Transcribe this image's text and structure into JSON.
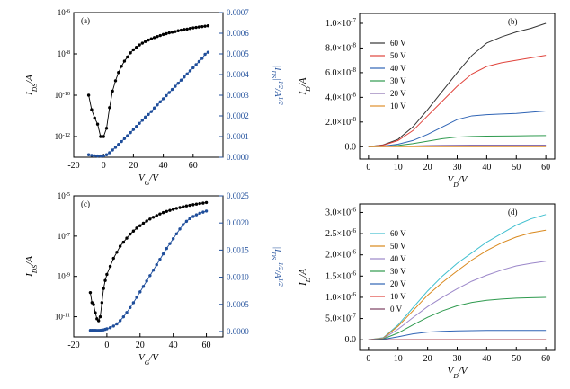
{
  "chart_data": [
    {
      "type": "line",
      "panel_label": "(a)",
      "xlabel": "V_G/V",
      "ylabel": "I_DS/A",
      "y2label": "|I_DS|^1/2/A^1/2",
      "xlim": [
        -20,
        80
      ],
      "xticks": [
        "-20",
        "0",
        "20",
        "40",
        "60"
      ],
      "ylim_log10": [
        -13,
        -6
      ],
      "yticks": [
        "10^-12",
        "10^-10",
        "10^-8",
        "10^-6"
      ],
      "y2lim": [
        0,
        0.0007
      ],
      "y2ticks": [
        "0.0000",
        "0.0001",
        "0.0002",
        "0.0003",
        "0.0004",
        "0.0005",
        "0.0006",
        "0.0007"
      ],
      "y2_color": "#1f4e9b",
      "x": [
        -10,
        -8,
        -6,
        -4,
        -2,
        0,
        2,
        4,
        6,
        8,
        10,
        12,
        14,
        16,
        18,
        20,
        22,
        24,
        26,
        28,
        30,
        32,
        34,
        36,
        38,
        40,
        42,
        44,
        46,
        48,
        50,
        52,
        54,
        56,
        58,
        60,
        62,
        64,
        66,
        68,
        70
      ],
      "series": [
        {
          "axis": "left",
          "color": "#000000",
          "values_log10": [
            -10.0,
            -10.7,
            -11.1,
            -11.4,
            -12.0,
            -12.0,
            -11.6,
            -10.6,
            -9.8,
            -9.3,
            -8.9,
            -8.6,
            -8.35,
            -8.15,
            -7.95,
            -7.8,
            -7.68,
            -7.57,
            -7.48,
            -7.4,
            -7.33,
            -7.27,
            -7.21,
            -7.16,
            -7.11,
            -7.06,
            -7.02,
            -6.98,
            -6.95,
            -6.92,
            -6.88,
            -6.85,
            -6.82,
            -6.8,
            -6.77,
            -6.74,
            -6.72,
            -6.7,
            -6.68,
            -6.66,
            -6.64
          ]
        },
        {
          "axis": "right",
          "color": "#1f4e9b",
          "values": [
            1.2e-05,
            9e-06,
            7e-06,
            6e-06,
            6e-06,
            7e-06,
            1.2e-05,
            2.2e-05,
            3.5e-05,
            4.8e-05,
            6.2e-05,
            7.6e-05,
            9e-05,
            0.000104,
            0.000119,
            0.000134,
            0.000149,
            0.000164,
            0.000179,
            0.000194,
            0.000207,
            0.000221,
            0.000238,
            0.000253,
            0.000268,
            0.000283,
            0.000298,
            0.000313,
            0.000328,
            0.000343,
            0.000358,
            0.000373,
            0.000388,
            0.000403,
            0.000418,
            0.000433,
            0.000448,
            0.000463,
            0.000478,
            0.000498,
            0.000508
          ]
        }
      ]
    },
    {
      "type": "line",
      "panel_label": "(b)",
      "xlabel": "V_D/V",
      "ylabel": "I_D/A",
      "xlim": [
        -3,
        63
      ],
      "xticks": [
        "0",
        "10",
        "20",
        "30",
        "40",
        "50",
        "60"
      ],
      "ylim": [
        -1e-08,
        1.08e-07
      ],
      "yticks": [
        "0.0",
        "2.0x10^-8",
        "4.0x10^-8",
        "6.0x10^-8",
        "8.0x10^-8",
        "1.0x10^-7"
      ],
      "x": [
        0,
        5,
        10,
        15,
        20,
        25,
        30,
        35,
        40,
        45,
        50,
        55,
        60
      ],
      "series": [
        {
          "name": "60 V",
          "color": "#333333",
          "values": [
            0,
            1.5e-09,
            6e-09,
            1.6e-08,
            3e-08,
            4.5e-08,
            6e-08,
            7.4e-08,
            8.4e-08,
            8.9e-08,
            9.3e-08,
            9.6e-08,
            1e-07
          ]
        },
        {
          "name": "50 V",
          "color": "#e0443c",
          "values": [
            0,
            1.2e-09,
            5e-09,
            1.3e-08,
            2.5e-08,
            3.7e-08,
            4.9e-08,
            5.9e-08,
            6.5e-08,
            6.8e-08,
            7e-08,
            7.2e-08,
            7.4e-08
          ]
        },
        {
          "name": "40 V",
          "color": "#2f64b5",
          "values": [
            0,
            5e-10,
            2e-09,
            5e-09,
            1e-08,
            1.6e-08,
            2.2e-08,
            2.5e-08,
            2.6e-08,
            2.65e-08,
            2.7e-08,
            2.8e-08,
            2.9e-08
          ]
        },
        {
          "name": "30 V",
          "color": "#2e9a4e",
          "values": [
            0,
            2e-10,
            1e-09,
            2.5e-09,
            4.5e-09,
            6.5e-09,
            7.8e-09,
            8.3e-09,
            8.6e-09,
            8.7e-09,
            8.8e-09,
            8.9e-09,
            9e-09
          ]
        },
        {
          "name": "20 V",
          "color": "#8a6fb0",
          "values": [
            0,
            1e-10,
            3e-10,
            6e-10,
            9e-10,
            1.1e-09,
            1.2e-09,
            1.25e-09,
            1.3e-09,
            1.3e-09,
            1.3e-09,
            1.3e-09,
            1.3e-09
          ]
        },
        {
          "name": "10 V",
          "color": "#e0902a",
          "values": [
            0,
            0,
            0,
            0,
            0,
            0,
            0,
            0,
            0,
            0,
            0,
            0,
            0
          ]
        }
      ]
    },
    {
      "type": "line",
      "panel_label": "(c)",
      "xlabel": "V_G/V",
      "ylabel": "I_DS/A",
      "y2label": "|I_DS|^1/2/A^1/2",
      "xlim": [
        -20,
        70
      ],
      "xticks": [
        "-20",
        "0",
        "20",
        "40",
        "60"
      ],
      "ylim_log10": [
        -12,
        -5
      ],
      "yticks": [
        "10^-11",
        "10^-9",
        "10^-7",
        "10^-5"
      ],
      "y2lim": [
        -0.0001,
        0.0025
      ],
      "y2ticks": [
        "0.0000",
        "0.0005",
        "0.0010",
        "0.0015",
        "0.0020",
        "0.0025"
      ],
      "y2_color": "#1f4e9b",
      "x": [
        -10,
        -9,
        -8,
        -7,
        -6,
        -5,
        -4,
        -3,
        -2,
        -1,
        0,
        2,
        4,
        6,
        8,
        10,
        12,
        14,
        16,
        18,
        20,
        22,
        24,
        26,
        28,
        30,
        32,
        34,
        36,
        38,
        40,
        42,
        44,
        46,
        48,
        50,
        52,
        54,
        56,
        58,
        60
      ],
      "series": [
        {
          "axis": "left",
          "color": "#000000",
          "values_log10": [
            -9.8,
            -10.3,
            -10.4,
            -10.8,
            -11.1,
            -11.2,
            -11.0,
            -10.3,
            -9.6,
            -9.2,
            -8.9,
            -8.5,
            -8.1,
            -7.8,
            -7.5,
            -7.3,
            -7.1,
            -6.9,
            -6.75,
            -6.6,
            -6.48,
            -6.36,
            -6.25,
            -6.15,
            -6.06,
            -5.98,
            -5.9,
            -5.83,
            -5.77,
            -5.72,
            -5.67,
            -5.62,
            -5.58,
            -5.54,
            -5.5,
            -5.47,
            -5.44,
            -5.41,
            -5.38,
            -5.36,
            -5.33
          ]
        },
        {
          "axis": "right",
          "color": "#1f4e9b",
          "values": [
            2e-05,
            2e-05,
            2e-05,
            2e-05,
            1.8e-05,
            1.8e-05,
            2e-05,
            2.5e-05,
            3e-05,
            4e-05,
            5e-05,
            7e-05,
            0.0001,
            0.00014,
            0.0002,
            0.00027,
            0.00035,
            0.00044,
            0.00053,
            0.00063,
            0.00073,
            0.00083,
            0.00093,
            0.00103,
            0.00113,
            0.00123,
            0.00133,
            0.00143,
            0.00153,
            0.00162,
            0.00171,
            0.0018,
            0.00189,
            0.00197,
            0.00203,
            0.00208,
            0.00212,
            0.00215,
            0.00218,
            0.0022,
            0.00222
          ]
        }
      ]
    },
    {
      "type": "line",
      "panel_label": "(d)",
      "xlabel": "V_D/V",
      "ylabel": "I_D/A",
      "xlim": [
        -3,
        63
      ],
      "xticks": [
        "0",
        "10",
        "20",
        "30",
        "40",
        "50",
        "60"
      ],
      "ylim": [
        -2.5e-07,
        3.2e-06
      ],
      "yticks": [
        "0.0",
        "5.0x10^-7",
        "1.0x10^-6",
        "1.5x10^-6",
        "2.0x10^-6",
        "2.5x10^-6",
        "3.0x10^-6"
      ],
      "x": [
        0,
        5,
        10,
        15,
        20,
        25,
        30,
        35,
        40,
        45,
        50,
        55,
        60
      ],
      "series": [
        {
          "name": "60 V",
          "color": "#3fbfcf",
          "values": [
            0,
            5e-08,
            3.5e-07,
            7.5e-07,
            1.15e-06,
            1.5e-06,
            1.8e-06,
            2.05e-06,
            2.3e-06,
            2.5e-06,
            2.7e-06,
            2.85e-06,
            2.95e-06
          ]
        },
        {
          "name": "50 V",
          "color": "#d9881c",
          "values": [
            0,
            4e-08,
            3.2e-07,
            6.8e-07,
            1.05e-06,
            1.35e-06,
            1.62e-06,
            1.88e-06,
            2.1e-06,
            2.28e-06,
            2.42e-06,
            2.52e-06,
            2.58e-06
          ]
        },
        {
          "name": "40 V",
          "color": "#9b87c9",
          "values": [
            0,
            3e-08,
            2.5e-07,
            5.2e-07,
            7.8e-07,
            1e-06,
            1.2e-06,
            1.38e-06,
            1.52e-06,
            1.64e-06,
            1.74e-06,
            1.8e-06,
            1.85e-06
          ]
        },
        {
          "name": "30 V",
          "color": "#2e9a4e",
          "values": [
            0,
            2e-08,
            1.6e-07,
            3.5e-07,
            5.3e-07,
            6.8e-07,
            8e-07,
            8.8e-07,
            9.3e-07,
            9.6e-07,
            9.8e-07,
            9.9e-07,
            1e-06
          ]
        },
        {
          "name": "20 V",
          "color": "#2f64b5",
          "values": [
            0,
            1e-08,
            7e-08,
            1.4e-07,
            1.8e-07,
            2e-07,
            2.1e-07,
            2.15e-07,
            2.2e-07,
            2.2e-07,
            2.2e-07,
            2.2e-07,
            2.2e-07
          ]
        },
        {
          "name": "10 V",
          "color": "#e0443c",
          "values": [
            0,
            0,
            2e-09,
            3e-09,
            4e-09,
            5e-09,
            5e-09,
            5e-09,
            5e-09,
            5e-09,
            5e-09,
            5e-09,
            5e-09
          ]
        },
        {
          "name": "0 V",
          "color": "#7b3f61",
          "values": [
            0,
            0,
            0,
            0,
            0,
            0,
            0,
            0,
            0,
            0,
            0,
            0,
            0
          ]
        }
      ]
    }
  ]
}
